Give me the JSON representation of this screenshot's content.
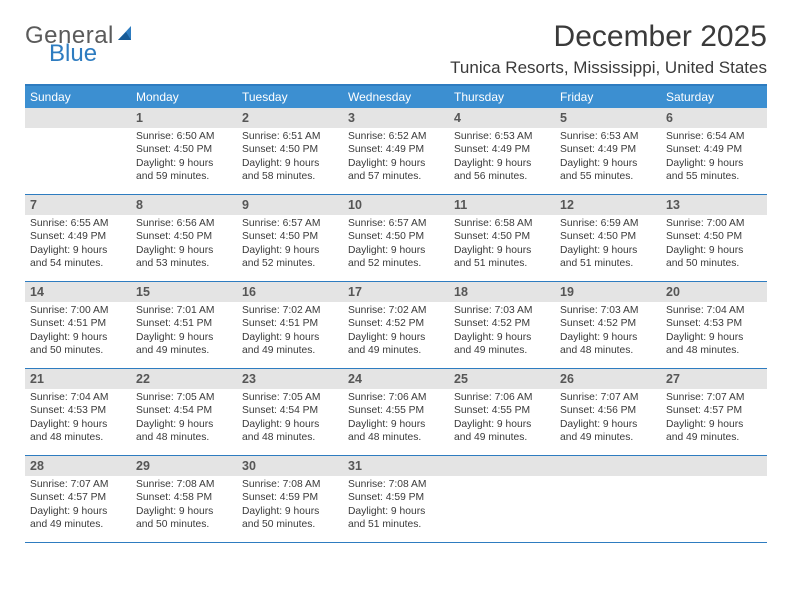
{
  "logo": {
    "part1": "General",
    "part2": "Blue"
  },
  "title": "December 2025",
  "location": "Tunica Resorts, Mississippi, United States",
  "colors": {
    "header_bg": "#3c8fd1",
    "header_border_top": "#2e7cc0",
    "row_border": "#2e7cc0",
    "daynum_bg": "#e4e4e4",
    "logo_blue": "#2e7cc0",
    "text": "#3a3a3a"
  },
  "typography": {
    "title_fontsize": 30,
    "location_fontsize": 17,
    "dayhead_fontsize": 12,
    "daynum_fontsize": 12.5,
    "body_fontsize": 10.3,
    "logo_fontsize": 24
  },
  "day_headers": [
    "Sunday",
    "Monday",
    "Tuesday",
    "Wednesday",
    "Thursday",
    "Friday",
    "Saturday"
  ],
  "weeks": [
    [
      {
        "n": "",
        "sunrise": "",
        "sunset": "",
        "daylight": ""
      },
      {
        "n": "1",
        "sunrise": "6:50 AM",
        "sunset": "4:50 PM",
        "daylight": "9 hours and 59 minutes."
      },
      {
        "n": "2",
        "sunrise": "6:51 AM",
        "sunset": "4:50 PM",
        "daylight": "9 hours and 58 minutes."
      },
      {
        "n": "3",
        "sunrise": "6:52 AM",
        "sunset": "4:49 PM",
        "daylight": "9 hours and 57 minutes."
      },
      {
        "n": "4",
        "sunrise": "6:53 AM",
        "sunset": "4:49 PM",
        "daylight": "9 hours and 56 minutes."
      },
      {
        "n": "5",
        "sunrise": "6:53 AM",
        "sunset": "4:49 PM",
        "daylight": "9 hours and 55 minutes."
      },
      {
        "n": "6",
        "sunrise": "6:54 AM",
        "sunset": "4:49 PM",
        "daylight": "9 hours and 55 minutes."
      }
    ],
    [
      {
        "n": "7",
        "sunrise": "6:55 AM",
        "sunset": "4:49 PM",
        "daylight": "9 hours and 54 minutes."
      },
      {
        "n": "8",
        "sunrise": "6:56 AM",
        "sunset": "4:50 PM",
        "daylight": "9 hours and 53 minutes."
      },
      {
        "n": "9",
        "sunrise": "6:57 AM",
        "sunset": "4:50 PM",
        "daylight": "9 hours and 52 minutes."
      },
      {
        "n": "10",
        "sunrise": "6:57 AM",
        "sunset": "4:50 PM",
        "daylight": "9 hours and 52 minutes."
      },
      {
        "n": "11",
        "sunrise": "6:58 AM",
        "sunset": "4:50 PM",
        "daylight": "9 hours and 51 minutes."
      },
      {
        "n": "12",
        "sunrise": "6:59 AM",
        "sunset": "4:50 PM",
        "daylight": "9 hours and 51 minutes."
      },
      {
        "n": "13",
        "sunrise": "7:00 AM",
        "sunset": "4:50 PM",
        "daylight": "9 hours and 50 minutes."
      }
    ],
    [
      {
        "n": "14",
        "sunrise": "7:00 AM",
        "sunset": "4:51 PM",
        "daylight": "9 hours and 50 minutes."
      },
      {
        "n": "15",
        "sunrise": "7:01 AM",
        "sunset": "4:51 PM",
        "daylight": "9 hours and 49 minutes."
      },
      {
        "n": "16",
        "sunrise": "7:02 AM",
        "sunset": "4:51 PM",
        "daylight": "9 hours and 49 minutes."
      },
      {
        "n": "17",
        "sunrise": "7:02 AM",
        "sunset": "4:52 PM",
        "daylight": "9 hours and 49 minutes."
      },
      {
        "n": "18",
        "sunrise": "7:03 AM",
        "sunset": "4:52 PM",
        "daylight": "9 hours and 49 minutes."
      },
      {
        "n": "19",
        "sunrise": "7:03 AM",
        "sunset": "4:52 PM",
        "daylight": "9 hours and 48 minutes."
      },
      {
        "n": "20",
        "sunrise": "7:04 AM",
        "sunset": "4:53 PM",
        "daylight": "9 hours and 48 minutes."
      }
    ],
    [
      {
        "n": "21",
        "sunrise": "7:04 AM",
        "sunset": "4:53 PM",
        "daylight": "9 hours and 48 minutes."
      },
      {
        "n": "22",
        "sunrise": "7:05 AM",
        "sunset": "4:54 PM",
        "daylight": "9 hours and 48 minutes."
      },
      {
        "n": "23",
        "sunrise": "7:05 AM",
        "sunset": "4:54 PM",
        "daylight": "9 hours and 48 minutes."
      },
      {
        "n": "24",
        "sunrise": "7:06 AM",
        "sunset": "4:55 PM",
        "daylight": "9 hours and 48 minutes."
      },
      {
        "n": "25",
        "sunrise": "7:06 AM",
        "sunset": "4:55 PM",
        "daylight": "9 hours and 49 minutes."
      },
      {
        "n": "26",
        "sunrise": "7:07 AM",
        "sunset": "4:56 PM",
        "daylight": "9 hours and 49 minutes."
      },
      {
        "n": "27",
        "sunrise": "7:07 AM",
        "sunset": "4:57 PM",
        "daylight": "9 hours and 49 minutes."
      }
    ],
    [
      {
        "n": "28",
        "sunrise": "7:07 AM",
        "sunset": "4:57 PM",
        "daylight": "9 hours and 49 minutes."
      },
      {
        "n": "29",
        "sunrise": "7:08 AM",
        "sunset": "4:58 PM",
        "daylight": "9 hours and 50 minutes."
      },
      {
        "n": "30",
        "sunrise": "7:08 AM",
        "sunset": "4:59 PM",
        "daylight": "9 hours and 50 minutes."
      },
      {
        "n": "31",
        "sunrise": "7:08 AM",
        "sunset": "4:59 PM",
        "daylight": "9 hours and 51 minutes."
      },
      {
        "n": "",
        "sunrise": "",
        "sunset": "",
        "daylight": ""
      },
      {
        "n": "",
        "sunrise": "",
        "sunset": "",
        "daylight": ""
      },
      {
        "n": "",
        "sunrise": "",
        "sunset": "",
        "daylight": ""
      }
    ]
  ],
  "labels": {
    "sunrise": "Sunrise:",
    "sunset": "Sunset:",
    "daylight": "Daylight:"
  }
}
